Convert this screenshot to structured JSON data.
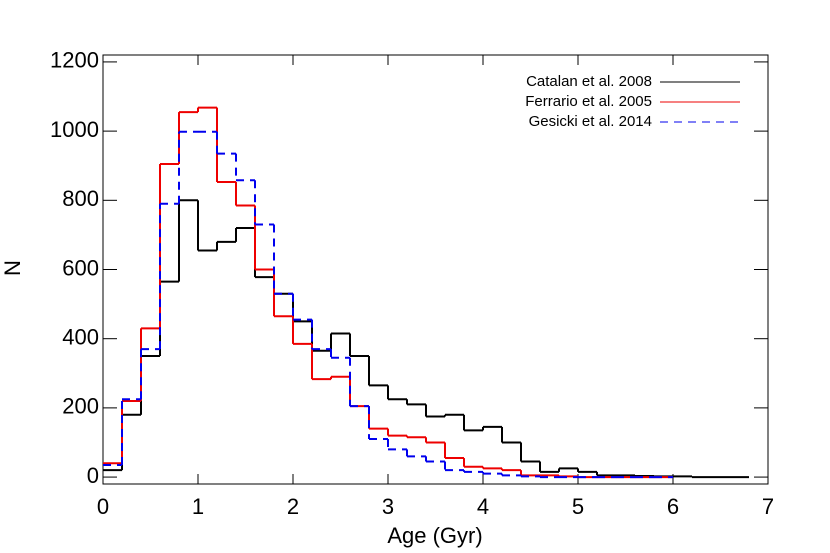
{
  "chart_data": {
    "type": "histogram",
    "xlabel": "Age (Gyr)",
    "ylabel": "N",
    "bins": [
      0,
      0.2,
      0.4,
      0.6,
      0.8,
      1.0,
      1.2,
      1.4,
      1.6,
      1.8,
      2.0,
      2.2,
      2.4,
      2.6,
      2.8,
      3.0,
      3.2,
      3.4,
      3.6,
      3.8,
      4.0,
      4.2,
      4.4,
      4.6,
      4.8,
      5.0,
      5.2,
      5.4,
      5.6,
      5.8,
      6.0,
      6.2,
      6.4,
      6.6,
      6.8,
      7.0
    ],
    "series": [
      {
        "name": "Catalan et al. 2008",
        "color": "#000000",
        "dash": "solid",
        "values": [
          20,
          180,
          350,
          565,
          800,
          655,
          680,
          720,
          578,
          530,
          450,
          365,
          415,
          350,
          265,
          225,
          210,
          175,
          180,
          135,
          145,
          100,
          45,
          15,
          25,
          15,
          5,
          5,
          3,
          2,
          2,
          0,
          0,
          0,
          null
        ]
      },
      {
        "name": "Ferrario et al. 2005",
        "color": "#ee0000",
        "dash": "solid",
        "values": [
          40,
          220,
          430,
          905,
          1055,
          1068,
          853,
          785,
          600,
          465,
          385,
          283,
          290,
          205,
          140,
          120,
          115,
          100,
          55,
          30,
          25,
          20,
          5,
          5,
          2,
          0,
          0,
          0,
          0,
          0,
          null,
          null,
          null,
          null,
          null
        ]
      },
      {
        "name": "Gesicki et al. 2014",
        "color": "#0000ee",
        "dash": "dashed",
        "values": [
          35,
          225,
          370,
          790,
          998,
          998,
          935,
          858,
          730,
          530,
          455,
          370,
          345,
          205,
          110,
          80,
          60,
          45,
          20,
          15,
          10,
          5,
          2,
          0,
          0,
          0,
          0,
          0,
          0,
          0,
          null,
          null,
          null,
          null,
          null
        ]
      }
    ],
    "xlim": [
      0,
      7
    ],
    "xticks": [
      0,
      1,
      2,
      3,
      4,
      5,
      6,
      7
    ],
    "ylim": [
      -20,
      1220
    ],
    "yticks": [
      0,
      200,
      400,
      600,
      800,
      1000,
      1200
    ],
    "legend": "top-right"
  }
}
